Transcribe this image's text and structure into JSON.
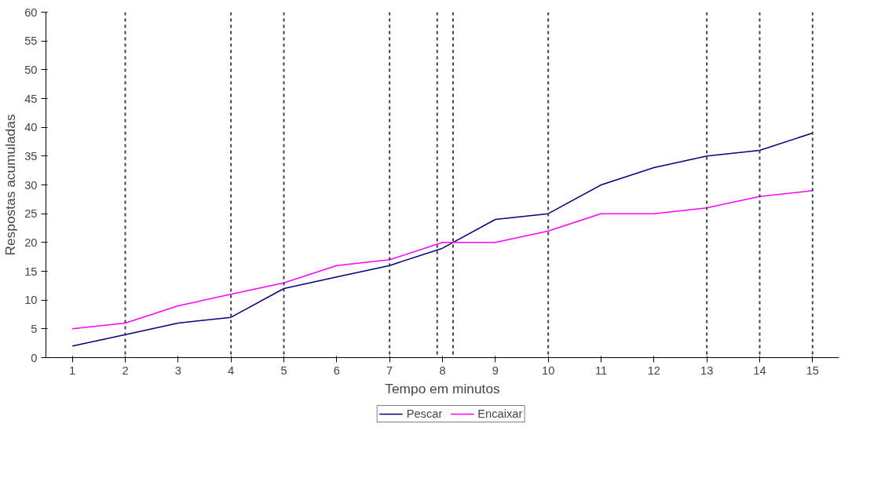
{
  "chart_data": {
    "type": "line",
    "xlabel": "Tempo em minutos",
    "ylabel": "Respostas acumuladas",
    "x": [
      1,
      2,
      3,
      4,
      5,
      6,
      7,
      8,
      9,
      10,
      11,
      12,
      13,
      14,
      15
    ],
    "series": [
      {
        "name": "Pescar",
        "color": "#000080",
        "values": [
          2,
          4,
          6,
          7,
          12,
          14,
          16,
          19,
          24,
          25,
          30,
          33,
          35,
          36,
          39
        ]
      },
      {
        "name": "Encaixar",
        "color": "#ff00ff",
        "values": [
          5,
          6,
          9,
          11,
          13,
          16,
          17,
          20,
          20,
          22,
          25,
          25,
          26,
          28,
          29
        ]
      }
    ],
    "xlim": [
      0.5,
      15.5
    ],
    "xticks": [
      1,
      2,
      3,
      4,
      5,
      6,
      7,
      8,
      9,
      10,
      11,
      12,
      13,
      14,
      15
    ],
    "ylim": [
      0,
      60
    ],
    "yticks": [
      0,
      5,
      10,
      15,
      20,
      25,
      30,
      35,
      40,
      45,
      50,
      55,
      60
    ],
    "ref_lines": [
      {
        "axis": "x",
        "value": 2,
        "color": "#404040",
        "line_style": "dotted"
      },
      {
        "axis": "x",
        "value": 4,
        "color": "#404040",
        "line_style": "dotted"
      },
      {
        "axis": "x",
        "value": 5,
        "color": "#404040",
        "line_style": "dotted"
      },
      {
        "axis": "x",
        "value": 7,
        "color": "#404040",
        "line_style": "dotted"
      },
      {
        "axis": "x",
        "value": 7.9,
        "color": "#404040",
        "line_style": "dotted"
      },
      {
        "axis": "x",
        "value": 8.2,
        "color": "#404040",
        "line_style": "dotted"
      },
      {
        "axis": "x",
        "value": 10,
        "color": "#404040",
        "line_style": "dotted"
      },
      {
        "axis": "x",
        "value": 13,
        "color": "#404040",
        "line_style": "dotted"
      },
      {
        "axis": "x",
        "value": 14,
        "color": "#404040",
        "line_style": "dotted"
      },
      {
        "axis": "x",
        "value": 15,
        "color": "#404040",
        "line_style": "dotted"
      }
    ],
    "grid": false,
    "legend": "bottom",
    "marker": "none",
    "line_style": "solid"
  }
}
